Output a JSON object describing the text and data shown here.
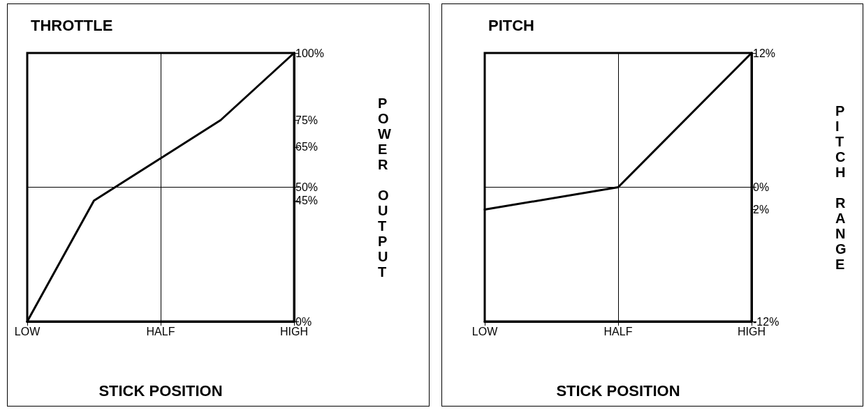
{
  "chart_data": [
    {
      "type": "line",
      "title": "THROTTLE",
      "xlabel": "STICK POSITION",
      "ylabel": "POWER OUTPUT",
      "categories": [
        "LOW",
        null,
        null,
        null,
        null,
        null,
        null,
        null,
        null,
        null,
        null,
        null,
        null,
        null,
        null,
        null,
        null,
        null,
        null,
        null,
        "HALF",
        null,
        null,
        null,
        null,
        null,
        null,
        null,
        null,
        null,
        null,
        null,
        null,
        null,
        null,
        null,
        null,
        null,
        null,
        null,
        "HIGH"
      ],
      "values": [
        0,
        null,
        null,
        null,
        null,
        null,
        null,
        null,
        null,
        null,
        45,
        null,
        null,
        null,
        null,
        null,
        null,
        null,
        null,
        null,
        null,
        null,
        null,
        null,
        null,
        null,
        null,
        null,
        null,
        75,
        null,
        null,
        null,
        null,
        null,
        null,
        null,
        null,
        null,
        null,
        100
      ],
      "color": "#000000",
      "ylim": [
        0,
        100
      ],
      "yticks": [
        {
          "value": 0,
          "label": "0%"
        },
        {
          "value": 45,
          "label": "45%"
        },
        {
          "value": 50,
          "label": "50%"
        },
        {
          "value": 65,
          "label": "65%"
        },
        {
          "value": 75,
          "label": "75%"
        },
        {
          "value": 100,
          "label": "100%"
        }
      ],
      "ref_lines": [
        {
          "axis": "x",
          "value": "HALF"
        },
        {
          "axis": "y",
          "value": 50
        }
      ],
      "grid": false
    },
    {
      "type": "line",
      "title": "PITCH",
      "xlabel": "STICK POSITION",
      "ylabel": "PITCH RANGE",
      "categories": [
        "LOW",
        "HALF",
        "HIGH"
      ],
      "values": [
        -2,
        0,
        12
      ],
      "color": "#000000",
      "ylim": [
        -12,
        12
      ],
      "yticks": [
        {
          "value": -12,
          "label": "-12%"
        },
        {
          "value": -2,
          "label": "2%"
        },
        {
          "value": 0,
          "label": "0%"
        },
        {
          "value": 12,
          "label": "12%"
        }
      ],
      "ref_lines": [
        {
          "axis": "x",
          "value": "HALF"
        },
        {
          "axis": "y",
          "value": 0
        }
      ],
      "grid": false
    }
  ]
}
